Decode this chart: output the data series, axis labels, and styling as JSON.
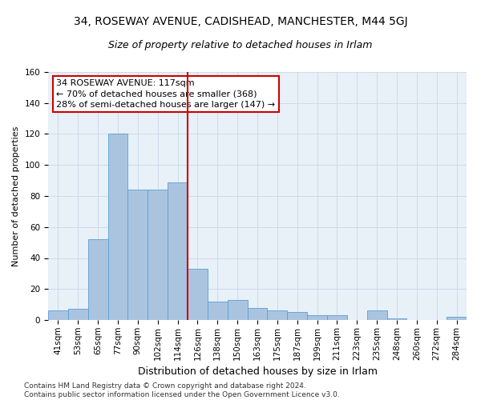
{
  "title1": "34, ROSEWAY AVENUE, CADISHEAD, MANCHESTER, M44 5GJ",
  "title2": "Size of property relative to detached houses in Irlam",
  "xlabel": "Distribution of detached houses by size in Irlam",
  "ylabel": "Number of detached properties",
  "categories": [
    "41sqm",
    "53sqm",
    "65sqm",
    "77sqm",
    "90sqm",
    "102sqm",
    "114sqm",
    "126sqm",
    "138sqm",
    "150sqm",
    "163sqm",
    "175sqm",
    "187sqm",
    "199sqm",
    "211sqm",
    "223sqm",
    "235sqm",
    "248sqm",
    "260sqm",
    "272sqm",
    "284sqm"
  ],
  "values": [
    6,
    7,
    52,
    120,
    84,
    84,
    89,
    33,
    12,
    13,
    8,
    6,
    5,
    3,
    3,
    0,
    6,
    1,
    0,
    0,
    2
  ],
  "bar_color": "#aac4e0",
  "bar_edge_color": "#5a9fd4",
  "marker_index": 6,
  "annotation_line1": "34 ROSEWAY AVENUE: 117sqm",
  "annotation_line2": "← 70% of detached houses are smaller (368)",
  "annotation_line3": "28% of semi-detached houses are larger (147) →",
  "annotation_box_color": "#ffffff",
  "annotation_box_edge_color": "#cc0000",
  "vline_color": "#cc0000",
  "grid_color": "#c8d8e8",
  "background_color": "#e8f0f8",
  "ylim": [
    0,
    160
  ],
  "yticks": [
    0,
    20,
    40,
    60,
    80,
    100,
    120,
    140,
    160
  ],
  "footer_text": "Contains HM Land Registry data © Crown copyright and database right 2024.\nContains public sector information licensed under the Open Government Licence v3.0.",
  "title1_fontsize": 10,
  "title2_fontsize": 9,
  "xlabel_fontsize": 9,
  "ylabel_fontsize": 8,
  "tick_fontsize": 7.5,
  "annotation_fontsize": 8,
  "footer_fontsize": 6.5
}
